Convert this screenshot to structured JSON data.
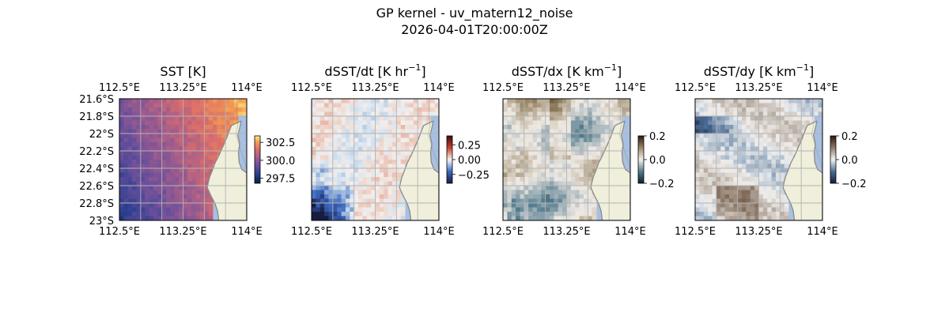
{
  "figure": {
    "title": "GP kernel - uv_matern12_noise",
    "subtitle": "2026-04-01T20:00:00Z"
  },
  "colors": {
    "land": "#efefdb",
    "ocean": "#a7c0e2",
    "coast": "#8a8a8a",
    "grid": "#b3b3b3"
  },
  "chart_data": [
    {
      "type": "heatmap",
      "panel": "sst",
      "title": "SST [K]",
      "lon_ticks": [
        "112.5°E",
        "113.25°E",
        "114°E"
      ],
      "lon_values": [
        112.5,
        113.25,
        114.0
      ],
      "lat_ticks": [
        "21.6°S",
        "21.8°S",
        "22°S",
        "22.2°S",
        "22.4°S",
        "22.6°S",
        "22.8°S",
        "23°S"
      ],
      "lat_values": [
        -21.6,
        -21.8,
        -22.0,
        -22.2,
        -22.4,
        -22.6,
        -22.8,
        -23.0
      ],
      "xlim": [
        112.5,
        114.0
      ],
      "ylim": [
        -23.0,
        -21.6
      ],
      "colorbar": {
        "ticks": [
          "302.5",
          "300.0",
          "297.5"
        ],
        "values": [
          302.5,
          300.0,
          297.5
        ],
        "range": [
          296.8,
          303.4
        ],
        "colormap": "thermal"
      }
    },
    {
      "type": "heatmap",
      "panel": "dsst_dt",
      "title_main": "dSST/dt [K hr",
      "title_sup": "−1",
      "title_end": "]",
      "lon_ticks": [
        "112.5°E",
        "113.25°E",
        "114°E"
      ],
      "lon_values": [
        112.5,
        113.25,
        114.0
      ],
      "xlim": [
        112.5,
        114.0
      ],
      "ylim": [
        -23.0,
        -21.6
      ],
      "colorbar": {
        "ticks": [
          "0.25",
          "0.00",
          "−0.25"
        ],
        "values": [
          0.25,
          0.0,
          -0.25
        ],
        "range": [
          -0.4,
          0.4
        ],
        "colormap": "balance"
      }
    },
    {
      "type": "heatmap",
      "panel": "dsst_dx",
      "title_main": "dSST/dx [K km",
      "title_sup": "−1",
      "title_end": "]",
      "lon_ticks": [
        "112.5°E",
        "113.25°E",
        "114°E"
      ],
      "lon_values": [
        112.5,
        113.25,
        114.0
      ],
      "xlim": [
        112.5,
        114.0
      ],
      "ylim": [
        -23.0,
        -21.6
      ],
      "colorbar": {
        "ticks": [
          "0.2",
          "0.0",
          "−0.2"
        ],
        "values": [
          0.2,
          0.0,
          -0.2
        ],
        "range": [
          -0.2,
          0.2
        ],
        "colormap": "diff"
      }
    },
    {
      "type": "heatmap",
      "panel": "dsst_dy",
      "title_main": "dSST/dy [K km",
      "title_sup": "−1",
      "title_end": "]",
      "lon_ticks": [
        "112.5°E",
        "113.25°E",
        "114°E"
      ],
      "lon_values": [
        112.5,
        113.25,
        114.0
      ],
      "xlim": [
        112.5,
        114.0
      ],
      "ylim": [
        -23.0,
        -21.6
      ],
      "colorbar": {
        "ticks": [
          "0.2",
          "0.0",
          "−0.2"
        ],
        "values": [
          0.2,
          0.0,
          -0.2
        ],
        "range": [
          -0.2,
          0.2
        ],
        "colormap": "curl"
      }
    }
  ]
}
